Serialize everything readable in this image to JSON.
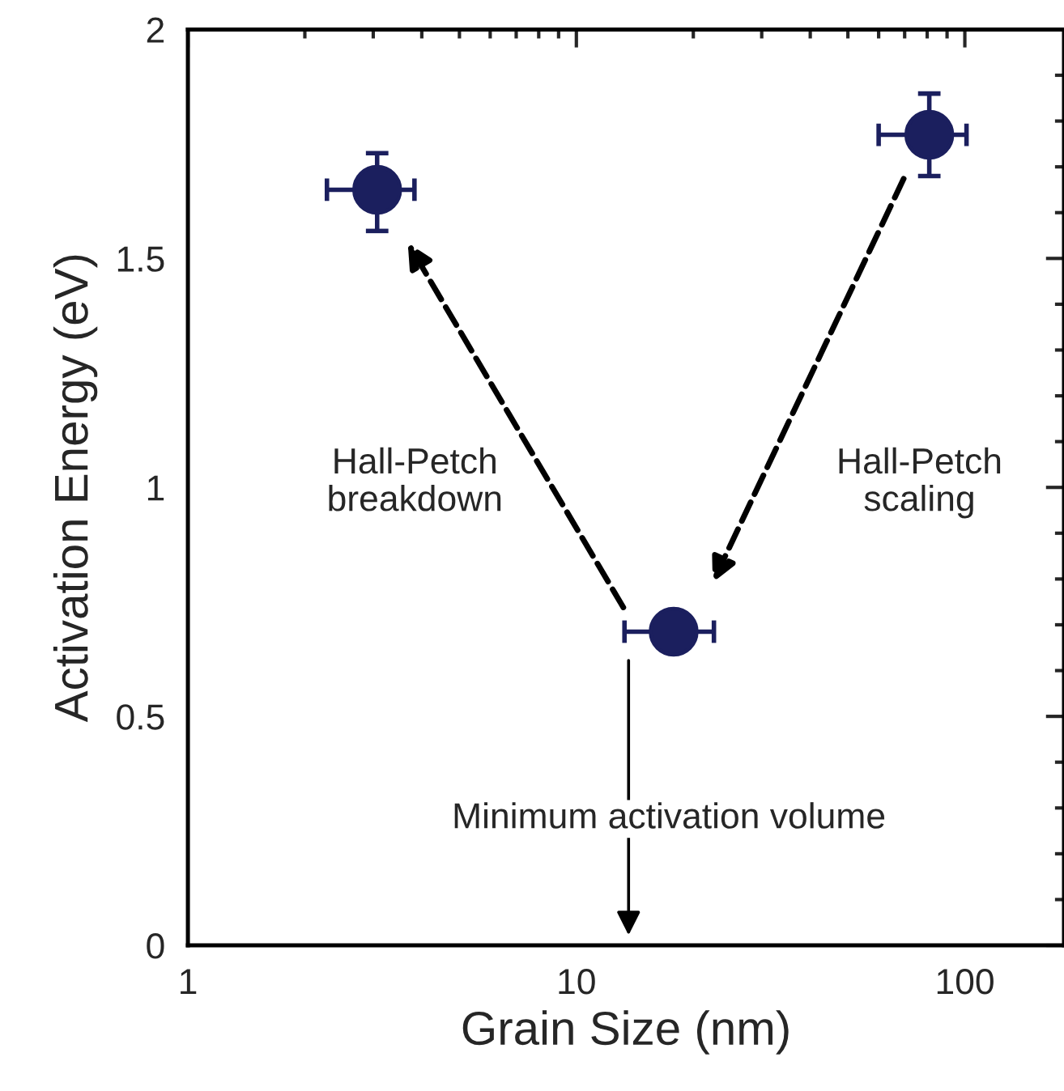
{
  "chart_data": {
    "type": "scatter",
    "xlabel": "Grain Size (nm)",
    "ylabel": "Activation Energy (eV)",
    "x": [
      3.07,
      17.8,
      81
    ],
    "series": [
      {
        "color": "#1b1f5e",
        "values": [
          1.65,
          0.685,
          1.77
        ],
        "errors": [
          [
            1.56,
            1.73
          ],
          null,
          [
            1.68,
            1.86
          ]
        ],
        "xerrors": [
          [
            2.28,
            3.83
          ],
          [
            13.3,
            22.6
          ],
          [
            60,
            101
          ]
        ]
      }
    ],
    "log": "x",
    "xlim": [
      1,
      180
    ],
    "ylim": [
      0,
      2
    ],
    "xticks": [
      1,
      10,
      100
    ],
    "yticks": [
      0,
      0.5,
      1,
      1.5,
      2
    ],
    "marker": "circle",
    "grid": false,
    "legend": false,
    "annotations": [
      "Hall-Petch\nbreakdown",
      "Hall-Petch\nscaling",
      "Minimum activation volume"
    ]
  }
}
